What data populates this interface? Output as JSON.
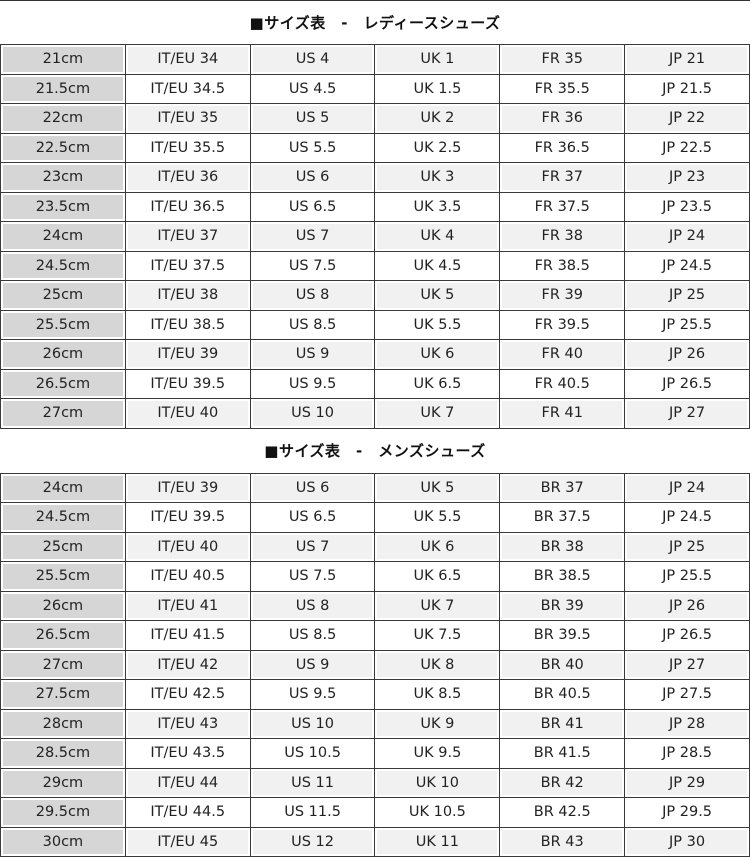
{
  "sections": [
    {
      "title": "■サイズ表　-　レディースシューズ",
      "rows": [
        [
          "21cm",
          "IT/EU 34",
          "US 4",
          "UK 1",
          "FR 35",
          "JP 21"
        ],
        [
          "21.5cm",
          "IT/EU 34.5",
          "US 4.5",
          "UK 1.5",
          "FR 35.5",
          "JP 21.5"
        ],
        [
          "22cm",
          "IT/EU 35",
          "US 5",
          "UK 2",
          "FR 36",
          "JP 22"
        ],
        [
          "22.5cm",
          "IT/EU 35.5",
          "US 5.5",
          "UK 2.5",
          "FR 36.5",
          "JP 22.5"
        ],
        [
          "23cm",
          "IT/EU 36",
          "US 6",
          "UK 3",
          "FR 37",
          "JP 23"
        ],
        [
          "23.5cm",
          "IT/EU 36.5",
          "US 6.5",
          "UK 3.5",
          "FR 37.5",
          "JP 23.5"
        ],
        [
          "24cm",
          "IT/EU 37",
          "US 7",
          "UK 4",
          "FR 38",
          "JP 24"
        ],
        [
          "24.5cm",
          "IT/EU 37.5",
          "US 7.5",
          "UK 4.5",
          "FR 38.5",
          "JP 24.5"
        ],
        [
          "25cm",
          "IT/EU 38",
          "US 8",
          "UK 5",
          "FR 39",
          "JP 25"
        ],
        [
          "25.5cm",
          "IT/EU 38.5",
          "US 8.5",
          "UK 5.5",
          "FR 39.5",
          "JP 25.5"
        ],
        [
          "26cm",
          "IT/EU 39",
          "US 9",
          "UK 6",
          "FR 40",
          "JP 26"
        ],
        [
          "26.5cm",
          "IT/EU 39.5",
          "US 9.5",
          "UK 6.5",
          "FR 40.5",
          "JP 26.5"
        ],
        [
          "27cm",
          "IT/EU 40",
          "US 10",
          "UK 7",
          "FR 41",
          "JP 27"
        ]
      ]
    },
    {
      "title": "■サイズ表　-　メンズシューズ",
      "rows": [
        [
          "24cm",
          "IT/EU 39",
          "US 6",
          "UK 5",
          "BR 37",
          "JP 24"
        ],
        [
          "24.5cm",
          "IT/EU 39.5",
          "US 6.5",
          "UK 5.5",
          "BR 37.5",
          "JP 24.5"
        ],
        [
          "25cm",
          "IT/EU 40",
          "US 7",
          "UK 6",
          "BR 38",
          "JP 25"
        ],
        [
          "25.5cm",
          "IT/EU 40.5",
          "US 7.5",
          "UK 6.5",
          "BR 38.5",
          "JP 25.5"
        ],
        [
          "26cm",
          "IT/EU 41",
          "US 8",
          "UK 7",
          "BR 39",
          "JP 26"
        ],
        [
          "26.5cm",
          "IT/EU 41.5",
          "US 8.5",
          "UK 7.5",
          "BR 39.5",
          "JP 26.5"
        ],
        [
          "27cm",
          "IT/EU 42",
          "US 9",
          "UK 8",
          "BR 40",
          "JP 27"
        ],
        [
          "27.5cm",
          "IT/EU 42.5",
          "US 9.5",
          "UK 8.5",
          "BR 40.5",
          "JP 27.5"
        ],
        [
          "28cm",
          "IT/EU 43",
          "US 10",
          "UK 9",
          "BR 41",
          "JP 28"
        ],
        [
          "28.5cm",
          "IT/EU 43.5",
          "US 10.5",
          "UK 9.5",
          "BR 41.5",
          "JP 28.5"
        ],
        [
          "29cm",
          "IT/EU 44",
          "US 11",
          "UK 10",
          "BR 42",
          "JP 29"
        ],
        [
          "29.5cm",
          "IT/EU 44.5",
          "US 11.5",
          "UK 10.5",
          "BR 42.5",
          "JP 29.5"
        ],
        [
          "30cm",
          "IT/EU 45",
          "US 12",
          "UK 11",
          "BR 43",
          "JP 30"
        ]
      ]
    }
  ]
}
